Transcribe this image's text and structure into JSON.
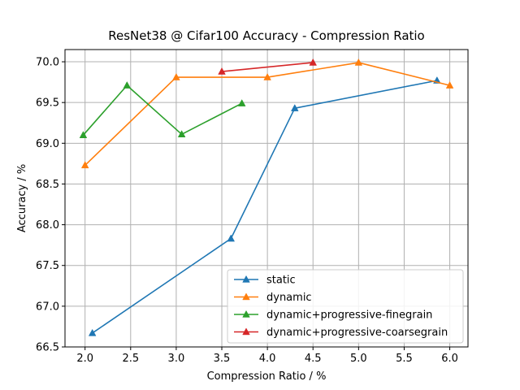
{
  "chart_data": {
    "type": "line",
    "title": "ResNet38 @ Cifar100 Accuracy - Compression Ratio",
    "xlabel": "Compression Ratio / %",
    "ylabel": "Accuracy / %",
    "xlim": [
      1.78,
      6.2
    ],
    "ylim": [
      66.5,
      70.15
    ],
    "xticks": [
      2.0,
      2.5,
      3.0,
      3.5,
      4.0,
      4.5,
      5.0,
      5.5,
      6.0
    ],
    "xtick_labels": [
      "2.0",
      "2.5",
      "3.0",
      "3.5",
      "4.0",
      "4.5",
      "5.0",
      "5.5",
      "6.0"
    ],
    "yticks": [
      66.5,
      67.0,
      67.5,
      68.0,
      68.5,
      69.0,
      69.5,
      70.0
    ],
    "ytick_labels": [
      "66.5",
      "67.0",
      "67.5",
      "68.0",
      "68.5",
      "69.0",
      "69.5",
      "70.0"
    ],
    "grid": true,
    "legend_position": "lower-right",
    "series": [
      {
        "name": "static",
        "color": "#1f77b4",
        "marker": "triangle-up",
        "x": [
          2.08,
          3.6,
          4.3,
          5.86
        ],
        "y": [
          66.67,
          67.83,
          69.43,
          69.77
        ]
      },
      {
        "name": "dynamic",
        "color": "#ff7f0e",
        "marker": "triangle-up",
        "x": [
          2.0,
          3.0,
          4.0,
          5.0,
          6.0
        ],
        "y": [
          68.73,
          69.81,
          69.81,
          69.99,
          69.71
        ]
      },
      {
        "name": "dynamic+progressive-finegrain",
        "color": "#2ca02c",
        "marker": "triangle-up",
        "x": [
          1.98,
          2.46,
          3.06,
          3.72
        ],
        "y": [
          69.1,
          69.71,
          69.11,
          69.49
        ]
      },
      {
        "name": "dynamic+progressive-coarsegrain",
        "color": "#d62728",
        "marker": "triangle-up",
        "x": [
          3.5,
          4.5
        ],
        "y": [
          69.88,
          69.99
        ]
      }
    ]
  }
}
